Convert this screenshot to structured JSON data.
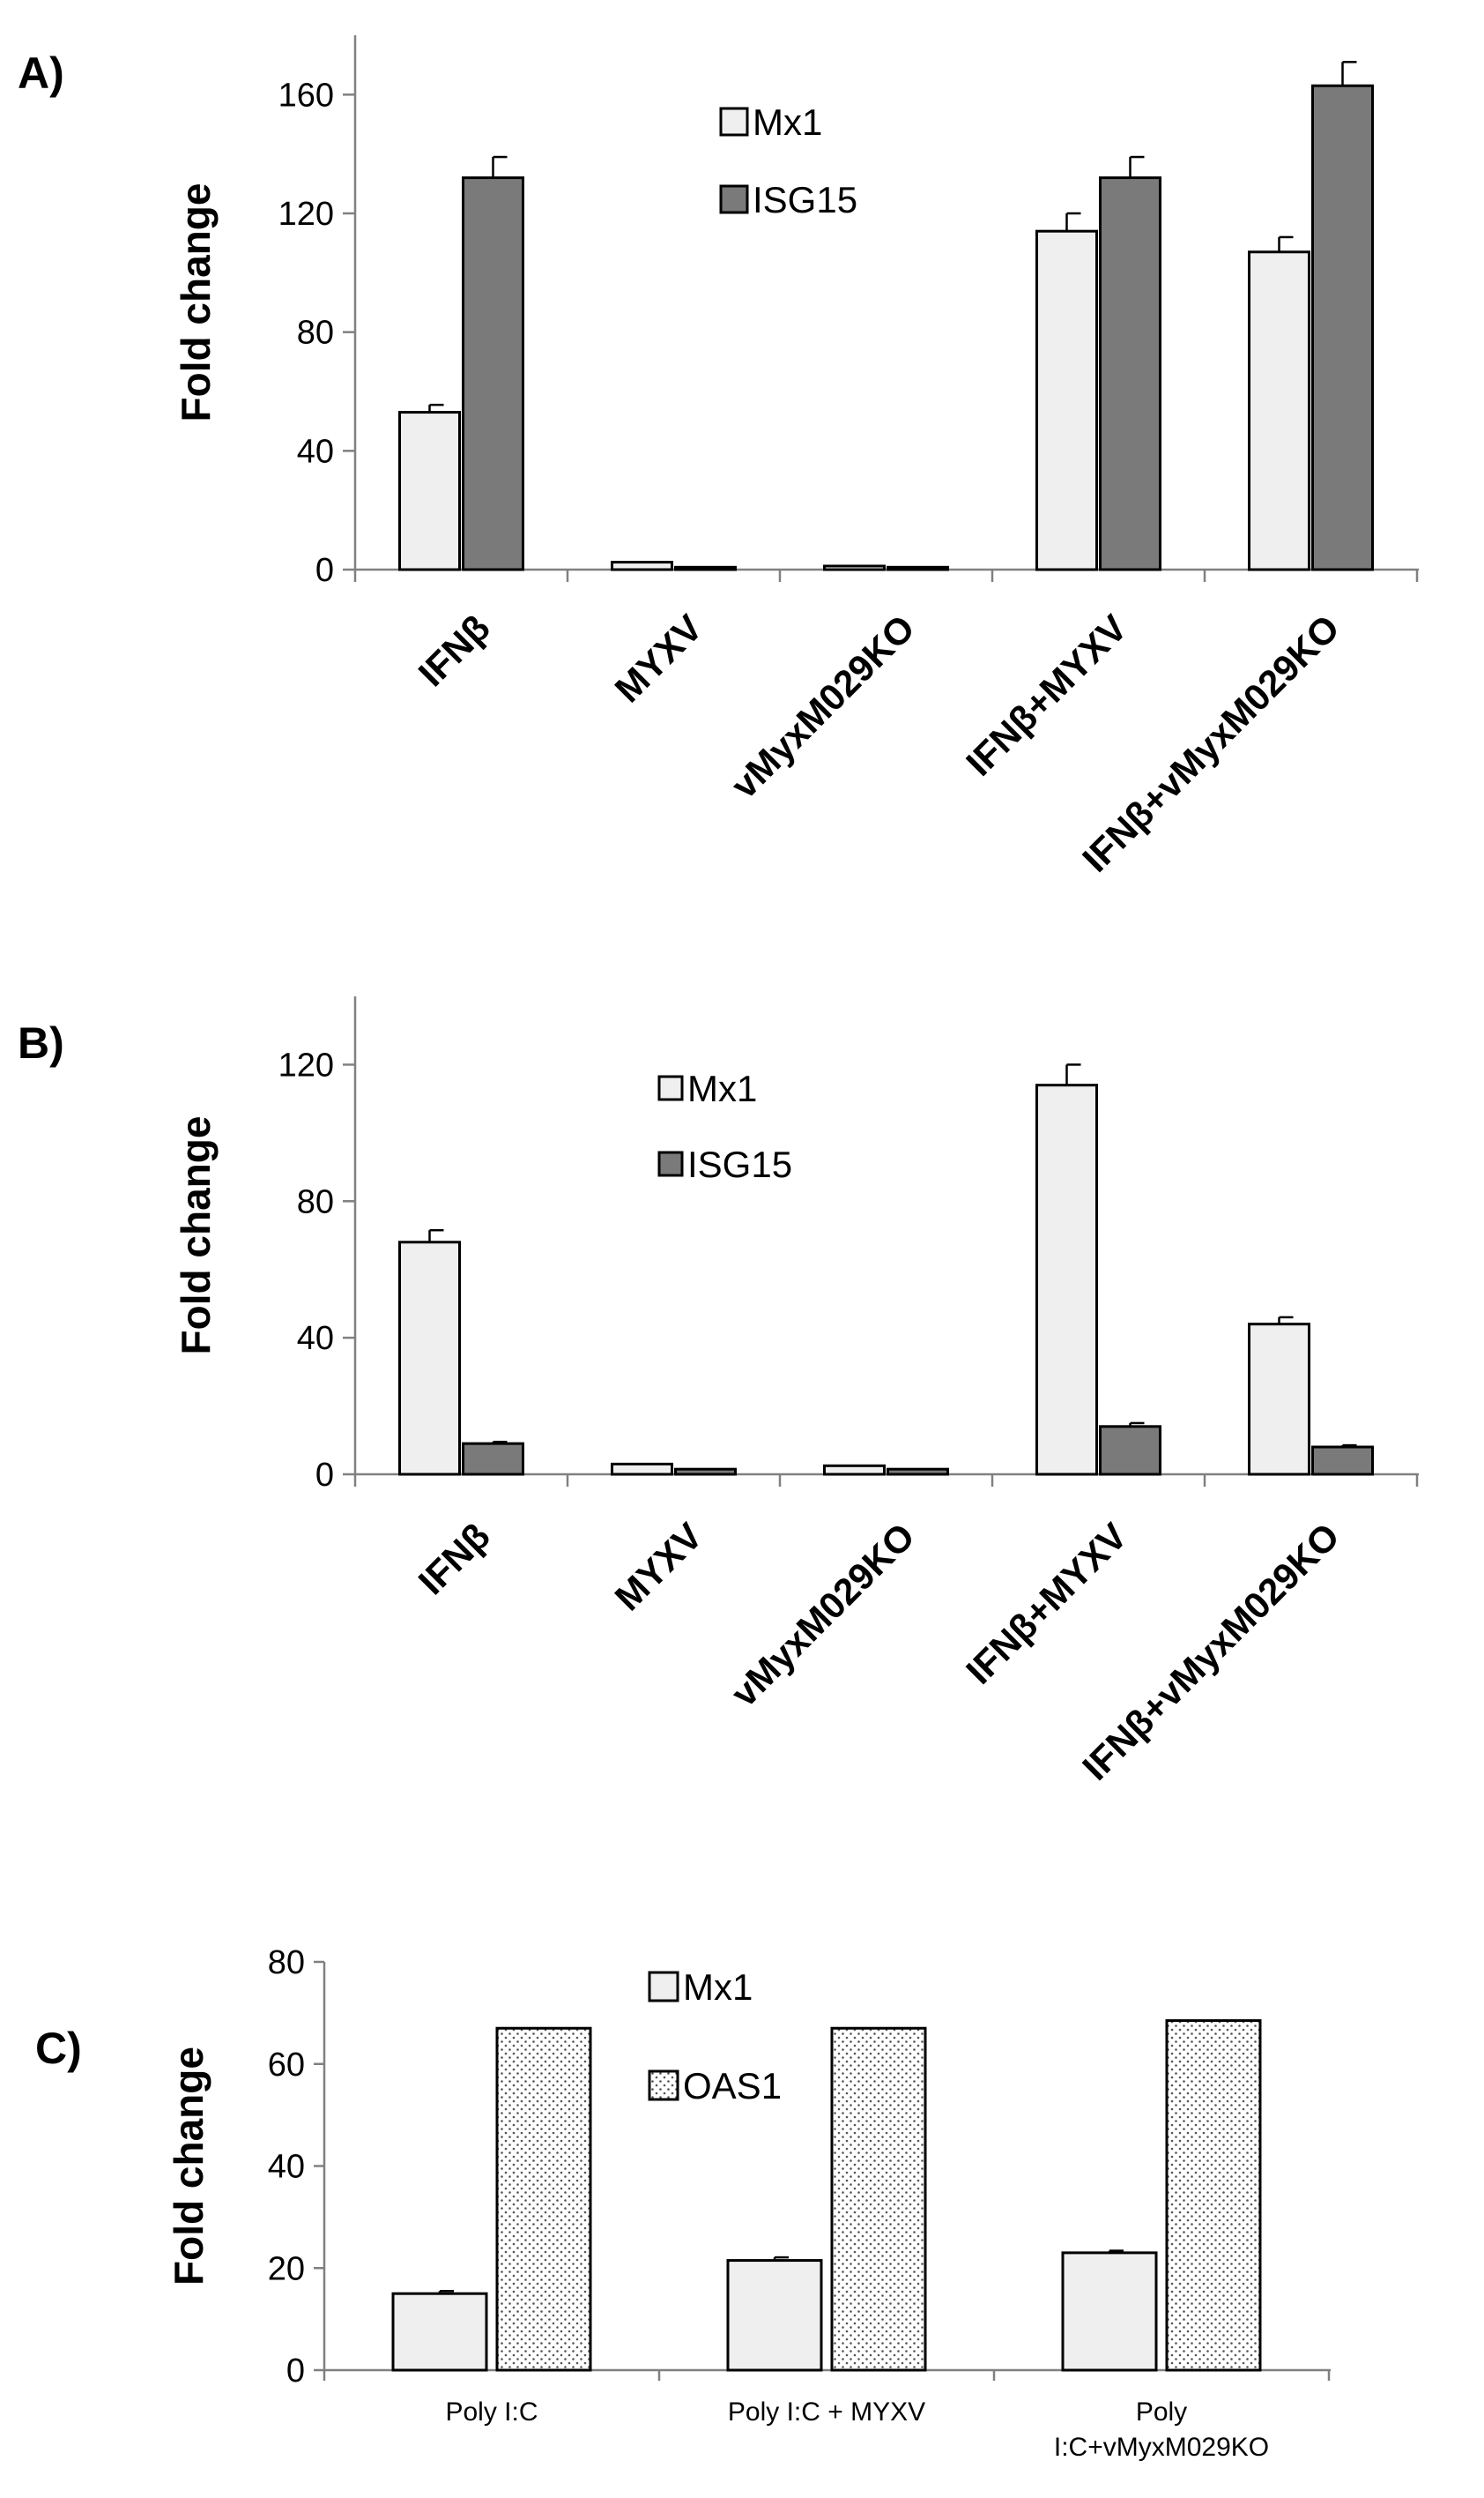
{
  "colors": {
    "light_bar": "#efefef",
    "dark_bar": "#7a7a7a",
    "axis": "#808080",
    "edge": "#000000",
    "dot_pattern": "#555555"
  },
  "chart_data": [
    {
      "panel": "A)",
      "type": "bar",
      "ylabel": "Fold change",
      "ylim": [
        0,
        180
      ],
      "yticks": [
        "0",
        "40",
        "80",
        "120",
        "160"
      ],
      "categories": [
        "IFNβ",
        "MYXV",
        "vMyxM029KO",
        "IFNβ+MYXV",
        "IFNβ+vMyxM029KO"
      ],
      "series": [
        {
          "name": "Mx1",
          "values": [
            53,
            2.5,
            1.2,
            114,
            107
          ],
          "errors": [
            2.5,
            0,
            0,
            6,
            5
          ],
          "fill": "light"
        },
        {
          "name": "ISG15",
          "values": [
            132,
            0.8,
            0.8,
            132,
            163
          ],
          "errors": [
            7,
            0,
            0,
            7,
            8
          ],
          "fill": "dark"
        }
      ],
      "legend_position": "top-center",
      "category_labels_rotated": true
    },
    {
      "panel": "B)",
      "type": "bar",
      "ylabel": "Fold change",
      "ylim": [
        0,
        140
      ],
      "yticks": [
        "0",
        "40",
        "80",
        "120"
      ],
      "categories": [
        "IFNβ",
        "MYXV",
        "vMyxM029KO",
        "IFNβ+MYXV",
        "IFNβ+vMyxM029KO"
      ],
      "series": [
        {
          "name": "Mx1",
          "values": [
            68,
            3,
            2.5,
            114,
            44
          ],
          "errors": [
            3.5,
            0,
            0,
            6,
            2
          ],
          "fill": "light"
        },
        {
          "name": "ISG15",
          "values": [
            9,
            1.5,
            1.5,
            14,
            8
          ],
          "errors": [
            0.5,
            0,
            0,
            1,
            0.5
          ],
          "fill": "dark"
        }
      ],
      "legend_position": "top-center",
      "category_labels_rotated": true
    },
    {
      "panel": "C)",
      "type": "bar",
      "ylabel": "Fold change",
      "ylim": [
        0,
        80
      ],
      "yticks": [
        "0",
        "20",
        "40",
        "60",
        "80"
      ],
      "categories": [
        "Poly I:C",
        "Poly I:C + MYXV",
        "Poly\nI:C+vMyxM029KO"
      ],
      "series": [
        {
          "name": "Mx1",
          "values": [
            15,
            21.5,
            23
          ],
          "errors": [
            0.5,
            0.6,
            0.4
          ],
          "fill": "light"
        },
        {
          "name": "OAS1",
          "values": [
            67,
            67,
            68.5
          ],
          "errors": [
            0,
            0,
            0
          ],
          "fill": "dotted"
        }
      ],
      "legend_position": "top-center",
      "category_labels_rotated": false
    }
  ]
}
